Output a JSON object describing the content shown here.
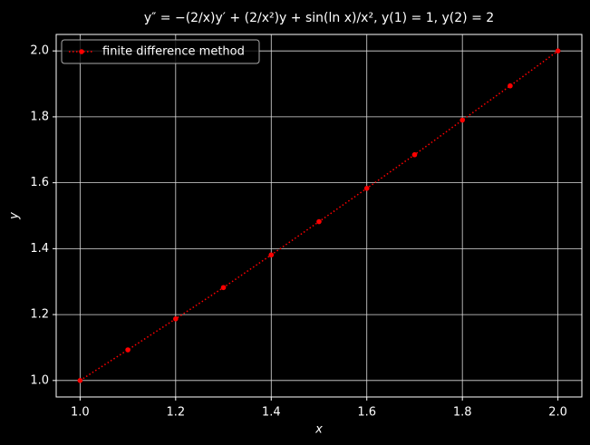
{
  "chart_data": {
    "type": "line",
    "title": "y″ = −(2/x)y′ + (2/x²)y + sin(ln x)/x²,    y(1) = 1,    y(2) = 2",
    "x_label": "x",
    "y_label": "y",
    "x": [
      1.0,
      1.1,
      1.2,
      1.3,
      1.4,
      1.5,
      1.6,
      1.7,
      1.8,
      1.9,
      2.0
    ],
    "series": [
      {
        "name": "finite difference method",
        "color": "#ff0000",
        "values": [
          1.0,
          1.093,
          1.187,
          1.282,
          1.381,
          1.482,
          1.583,
          1.685,
          1.79,
          1.894,
          2.0
        ]
      }
    ],
    "xlim": [
      0.95,
      2.05
    ],
    "ylim": [
      0.95,
      2.05
    ],
    "xticks": [
      {
        "value": 1.0,
        "label": "1.0"
      },
      {
        "value": 1.2,
        "label": "1.2"
      },
      {
        "value": 1.4,
        "label": "1.4"
      },
      {
        "value": 1.6,
        "label": "1.6"
      },
      {
        "value": 1.8,
        "label": "1.8"
      },
      {
        "value": 2.0,
        "label": "2.0"
      }
    ],
    "yticks": [
      {
        "value": 1.0,
        "label": "1.0"
      },
      {
        "value": 1.2,
        "label": "1.2"
      },
      {
        "value": 1.4,
        "label": "1.4"
      },
      {
        "value": 1.6,
        "label": "1.6"
      },
      {
        "value": 1.8,
        "label": "1.8"
      },
      {
        "value": 2.0,
        "label": "2.0"
      }
    ],
    "grid": true,
    "legend": "upper left",
    "line_style": "dotted",
    "marker": "circle"
  }
}
